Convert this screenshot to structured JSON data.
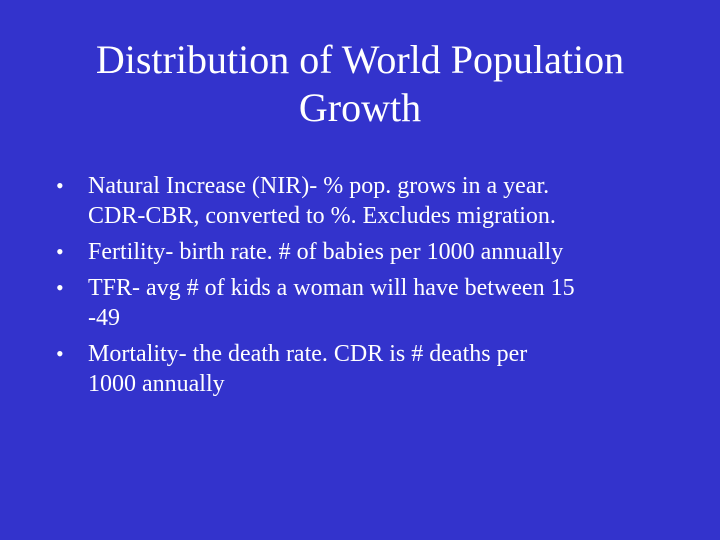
{
  "slide": {
    "title_lines": [
      "Distribution of World Population",
      "Growth"
    ],
    "bullet_symbol": "•",
    "bullets": [
      {
        "lines": [
          "Natural Increase (NIR)- % pop. grows in a year.",
          "CDR-CBR, converted to %.  Excludes migration."
        ]
      },
      {
        "lines": [
          "Fertility- birth rate.  # of babies per 1000 annually"
        ]
      },
      {
        "lines": [
          "TFR- avg # of kids a woman will have between 15",
          "-49"
        ]
      },
      {
        "lines": [
          "Mortality- the death rate.  CDR is # deaths per",
          "1000 annually"
        ]
      }
    ]
  }
}
